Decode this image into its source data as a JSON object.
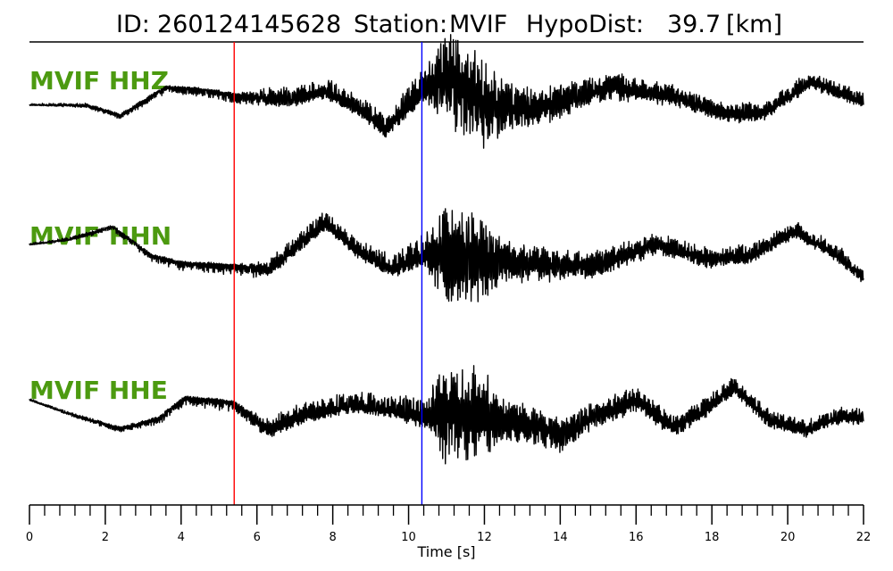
{
  "header": {
    "id_label": "ID:",
    "id_value": "260124145628",
    "station_label": "Station:",
    "station_value": "MVIF",
    "hypodist_label": "HypoDist:",
    "hypodist_value": "39.7",
    "hypodist_unit": "[km]"
  },
  "chart_data": {
    "type": "line",
    "xlabel": "Time [s]",
    "xlim": [
      0,
      22
    ],
    "x_major_ticks": [
      0,
      2,
      4,
      6,
      8,
      10,
      12,
      14,
      16,
      18,
      20,
      22
    ],
    "x_minor_step": 0.4,
    "picks": [
      {
        "phase": "P",
        "time": 5.4,
        "color": "#ff0000"
      },
      {
        "phase": "S",
        "time": 10.35,
        "color": "#0000ff"
      }
    ],
    "series": [
      {
        "name": "MVIF HHZ",
        "color": "#000000",
        "envelope": [
          [
            0,
            0.04,
            0.0
          ],
          [
            5.4,
            0.04,
            0.18
          ],
          [
            6.5,
            0.28,
            0.14
          ],
          [
            9.5,
            0.32,
            0.14
          ],
          [
            10.4,
            0.55,
            0.2
          ],
          [
            11.1,
            1.0,
            1.0
          ],
          [
            11.9,
            1.0,
            0.9
          ],
          [
            12.8,
            0.5,
            0.45
          ],
          [
            14.5,
            0.35,
            0.28
          ],
          [
            17,
            0.25,
            0.18
          ],
          [
            22,
            0.22,
            0.12
          ]
        ],
        "low_freq": [
          [
            0,
            0.0
          ],
          [
            1.5,
            0.0
          ],
          [
            2.4,
            -0.2
          ],
          [
            3.6,
            0.35
          ],
          [
            4.6,
            0.3
          ],
          [
            5.4,
            0.2
          ],
          [
            6.3,
            0.12
          ],
          [
            7.0,
            0.1
          ],
          [
            7.8,
            0.25
          ],
          [
            8.6,
            -0.05
          ],
          [
            9.4,
            -0.5
          ],
          [
            10.3,
            0.2
          ],
          [
            11.0,
            0.55
          ],
          [
            12.0,
            0.0
          ],
          [
            13.5,
            -0.05
          ],
          [
            15.3,
            0.35
          ],
          [
            17.0,
            0.15
          ],
          [
            18.5,
            -0.2
          ],
          [
            19.4,
            -0.15
          ],
          [
            20.6,
            0.45
          ],
          [
            21.5,
            0.2
          ],
          [
            22.0,
            0.05
          ]
        ]
      },
      {
        "name": "MVIF HHN",
        "color": "#000000",
        "envelope": [
          [
            0,
            0.04,
            0.0
          ],
          [
            5.4,
            0.04,
            0.2
          ],
          [
            6.5,
            0.25,
            0.14
          ],
          [
            9.5,
            0.3,
            0.14
          ],
          [
            10.4,
            0.45,
            0.2
          ],
          [
            11.0,
            1.0,
            1.0
          ],
          [
            11.8,
            1.0,
            0.9
          ],
          [
            12.6,
            0.45,
            0.4
          ],
          [
            14.5,
            0.32,
            0.26
          ],
          [
            17,
            0.25,
            0.18
          ],
          [
            22,
            0.22,
            0.12
          ]
        ],
        "low_freq": [
          [
            0,
            0.3
          ],
          [
            1.0,
            0.4
          ],
          [
            2.2,
            0.65
          ],
          [
            3.2,
            0.1
          ],
          [
            4.0,
            -0.05
          ],
          [
            5.4,
            -0.1
          ],
          [
            6.3,
            -0.2
          ],
          [
            7.8,
            0.7
          ],
          [
            8.8,
            0.1
          ],
          [
            9.6,
            -0.2
          ],
          [
            10.3,
            0.05
          ],
          [
            11.0,
            0.1
          ],
          [
            12.0,
            0.0
          ],
          [
            13.5,
            -0.1
          ],
          [
            15.0,
            -0.1
          ],
          [
            16.5,
            0.3
          ],
          [
            18.0,
            0.0
          ],
          [
            19.0,
            0.1
          ],
          [
            20.2,
            0.55
          ],
          [
            21.3,
            0.1
          ],
          [
            22.0,
            -0.35
          ]
        ]
      },
      {
        "name": "MVIF HHE",
        "color": "#000000",
        "envelope": [
          [
            0,
            0.04,
            0.0
          ],
          [
            5.4,
            0.04,
            0.2
          ],
          [
            6.5,
            0.3,
            0.16
          ],
          [
            9.5,
            0.3,
            0.14
          ],
          [
            10.4,
            0.45,
            0.2
          ],
          [
            11.0,
            1.0,
            1.0
          ],
          [
            11.8,
            1.0,
            0.9
          ],
          [
            12.6,
            0.45,
            0.45
          ],
          [
            14.5,
            0.35,
            0.28
          ],
          [
            17,
            0.25,
            0.18
          ],
          [
            22,
            0.22,
            0.12
          ]
        ],
        "low_freq": [
          [
            0,
            0.3
          ],
          [
            1.2,
            0.0
          ],
          [
            2.4,
            -0.25
          ],
          [
            3.4,
            -0.05
          ],
          [
            4.1,
            0.35
          ],
          [
            4.9,
            0.3
          ],
          [
            5.4,
            0.25
          ],
          [
            6.3,
            -0.3
          ],
          [
            7.2,
            0.0
          ],
          [
            8.5,
            0.2
          ],
          [
            9.5,
            0.1
          ],
          [
            10.3,
            -0.05
          ],
          [
            11.0,
            0.0
          ],
          [
            12.0,
            0.0
          ],
          [
            13.3,
            -0.2
          ],
          [
            14.0,
            -0.4
          ],
          [
            15.0,
            0.0
          ],
          [
            16.0,
            0.3
          ],
          [
            17.0,
            -0.25
          ],
          [
            18.0,
            0.2
          ],
          [
            18.6,
            0.55
          ],
          [
            19.5,
            -0.1
          ],
          [
            20.5,
            -0.3
          ],
          [
            21.2,
            -0.05
          ],
          [
            22.0,
            -0.05
          ]
        ]
      }
    ]
  }
}
